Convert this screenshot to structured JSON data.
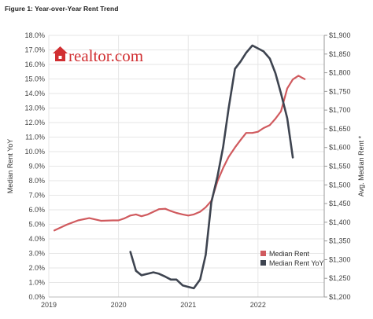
{
  "figure_label": "Figure 1: Year-over-Year Rent Trend",
  "logo_text": "realtor.com",
  "colors": {
    "median_rent": "#d05a5e",
    "median_rent_yoy": "#3e4450",
    "logo": "#d12f32",
    "grid": "#e6e6e6"
  },
  "chart_data": {
    "type": "line",
    "title": "Figure 1: Year-over-Year Rent Trend",
    "ylabel_left": "Median Rent YoY",
    "ylabel_right": "Avg. Median Rent *",
    "ylim_left": [
      0,
      18
    ],
    "ylim_right": [
      1200,
      1900
    ],
    "xlim": [
      2019,
      2022.95
    ],
    "grid": true,
    "legend_position": "bottom-right",
    "x_ticks": [
      {
        "value": 2019,
        "label": "2019"
      },
      {
        "value": 2020,
        "label": "2020"
      },
      {
        "value": 2021,
        "label": "2021"
      },
      {
        "value": 2022,
        "label": "2022"
      }
    ],
    "y_ticks_left": [
      {
        "value": 0,
        "label": "0.0%"
      },
      {
        "value": 1,
        "label": "1.0%"
      },
      {
        "value": 2,
        "label": "2.0%"
      },
      {
        "value": 3,
        "label": "3.0%"
      },
      {
        "value": 4,
        "label": "4.0%"
      },
      {
        "value": 5,
        "label": "5.0%"
      },
      {
        "value": 6,
        "label": "6.0%"
      },
      {
        "value": 7,
        "label": "7.0%"
      },
      {
        "value": 8,
        "label": "8.0%"
      },
      {
        "value": 9,
        "label": "9.0%"
      },
      {
        "value": 10,
        "label": "10.0%"
      },
      {
        "value": 11,
        "label": "11.0%"
      },
      {
        "value": 12,
        "label": "12.0%"
      },
      {
        "value": 13,
        "label": "13.0%"
      },
      {
        "value": 14,
        "label": "14.0%"
      },
      {
        "value": 15,
        "label": "15.0%"
      },
      {
        "value": 16,
        "label": "16.0%"
      },
      {
        "value": 17,
        "label": "17.0%"
      },
      {
        "value": 18,
        "label": "18.0%"
      }
    ],
    "y_ticks_right": [
      {
        "value": 1200,
        "label": "$1,200"
      },
      {
        "value": 1250,
        "label": "$1,250"
      },
      {
        "value": 1300,
        "label": "$1,300"
      },
      {
        "value": 1350,
        "label": "$1,350"
      },
      {
        "value": 1400,
        "label": "$1,400"
      },
      {
        "value": 1450,
        "label": "$1,450"
      },
      {
        "value": 1500,
        "label": "$1,500"
      },
      {
        "value": 1550,
        "label": "$1,550"
      },
      {
        "value": 1600,
        "label": "$1,600"
      },
      {
        "value": 1650,
        "label": "$1,650"
      },
      {
        "value": 1700,
        "label": "$1,700"
      },
      {
        "value": 1750,
        "label": "$1,750"
      },
      {
        "value": 1800,
        "label": "$1,800"
      },
      {
        "value": 1850,
        "label": "$1,850"
      },
      {
        "value": 1900,
        "label": "$1,900"
      }
    ],
    "series": [
      {
        "name": "Median Rent",
        "axis": "right",
        "color": "#d05a5e",
        "points": [
          [
            2019.08,
            1378
          ],
          [
            2019.25,
            1393
          ],
          [
            2019.42,
            1405
          ],
          [
            2019.58,
            1411
          ],
          [
            2019.75,
            1404
          ],
          [
            2019.92,
            1405
          ],
          [
            2020.0,
            1405
          ],
          [
            2020.08,
            1410
          ],
          [
            2020.17,
            1418
          ],
          [
            2020.25,
            1421
          ],
          [
            2020.33,
            1416
          ],
          [
            2020.42,
            1421
          ],
          [
            2020.58,
            1435
          ],
          [
            2020.67,
            1436
          ],
          [
            2020.75,
            1430
          ],
          [
            2020.83,
            1425
          ],
          [
            2020.92,
            1421
          ],
          [
            2021.0,
            1418
          ],
          [
            2021.08,
            1421
          ],
          [
            2021.17,
            1428
          ],
          [
            2021.25,
            1440
          ],
          [
            2021.33,
            1457
          ],
          [
            2021.42,
            1510
          ],
          [
            2021.5,
            1545
          ],
          [
            2021.58,
            1575
          ],
          [
            2021.67,
            1600
          ],
          [
            2021.75,
            1620
          ],
          [
            2021.83,
            1639
          ],
          [
            2021.92,
            1639
          ],
          [
            2022.0,
            1642
          ],
          [
            2022.08,
            1652
          ],
          [
            2022.17,
            1660
          ],
          [
            2022.25,
            1677
          ],
          [
            2022.33,
            1697
          ],
          [
            2022.42,
            1758
          ],
          [
            2022.5,
            1782
          ],
          [
            2022.58,
            1792
          ],
          [
            2022.67,
            1783
          ]
        ]
      },
      {
        "name": "Median Rent YoY",
        "axis": "left",
        "color": "#3e4450",
        "points": [
          [
            2020.17,
            3.1
          ],
          [
            2020.25,
            1.8
          ],
          [
            2020.33,
            1.5
          ],
          [
            2020.42,
            1.6
          ],
          [
            2020.5,
            1.7
          ],
          [
            2020.58,
            1.6
          ],
          [
            2020.67,
            1.4
          ],
          [
            2020.75,
            1.2
          ],
          [
            2020.83,
            1.2
          ],
          [
            2020.92,
            0.8
          ],
          [
            2021.0,
            0.7
          ],
          [
            2021.08,
            0.6
          ],
          [
            2021.17,
            1.2
          ],
          [
            2021.25,
            2.9
          ],
          [
            2021.33,
            6.5
          ],
          [
            2021.42,
            8.3
          ],
          [
            2021.5,
            10.3
          ],
          [
            2021.58,
            13.0
          ],
          [
            2021.67,
            15.7
          ],
          [
            2021.75,
            16.2
          ],
          [
            2021.83,
            16.8
          ],
          [
            2021.92,
            17.3
          ],
          [
            2022.0,
            17.1
          ],
          [
            2022.08,
            16.9
          ],
          [
            2022.17,
            16.4
          ],
          [
            2022.25,
            15.4
          ],
          [
            2022.33,
            14.0
          ],
          [
            2022.42,
            12.3
          ],
          [
            2022.5,
            9.6
          ]
        ]
      }
    ]
  }
}
